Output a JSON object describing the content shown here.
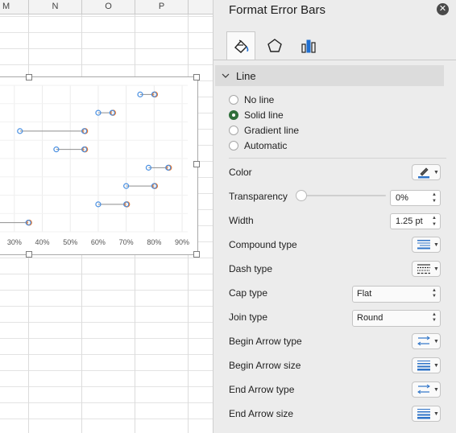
{
  "sheet": {
    "columns": [
      "M",
      "N",
      "O",
      "P"
    ]
  },
  "chart_data": {
    "type": "scatter",
    "x_ticks": [
      "30%",
      "40%",
      "50%",
      "60%",
      "70%",
      "80%",
      "90%"
    ],
    "xlim": [
      0.24,
      0.92
    ],
    "rows": [
      {
        "start": 0.75,
        "end": 0.8
      },
      {
        "start": 0.6,
        "end": 0.65
      },
      {
        "start": 0.32,
        "end": 0.55
      },
      {
        "start": 0.45,
        "end": 0.55
      },
      {
        "start": 0.78,
        "end": 0.85
      },
      {
        "start": 0.7,
        "end": 0.8
      },
      {
        "start": 0.6,
        "end": 0.7
      },
      {
        "start": 0.2,
        "end": 0.35
      }
    ],
    "series_colors": {
      "start": "#4a90e2",
      "end": "#e9772e"
    }
  },
  "panel": {
    "title": "Format Error Bars",
    "close_icon": "close-icon",
    "tabs": [
      {
        "name": "fill-line-tab",
        "icon": "paint-bucket-icon"
      },
      {
        "name": "effects-tab",
        "icon": "pentagon-icon"
      },
      {
        "name": "options-tab",
        "icon": "bar-chart-icon"
      }
    ],
    "section": "Line",
    "line_options": [
      "No line",
      "Solid line",
      "Gradient line",
      "Automatic"
    ],
    "selected_option": "Solid line",
    "props": {
      "color": "Color",
      "transparency": "Transparency",
      "transparency_value": "0%",
      "width": "Width",
      "width_value": "1.25 pt",
      "compound": "Compound type",
      "dash": "Dash type",
      "cap": "Cap type",
      "cap_value": "Flat",
      "join": "Join type",
      "join_value": "Round",
      "begin_arrow_type": "Begin Arrow type",
      "begin_arrow_size": "Begin Arrow size",
      "end_arrow_type": "End Arrow type",
      "end_arrow_size": "End Arrow size"
    },
    "accent_color": "#2f6e3a"
  }
}
